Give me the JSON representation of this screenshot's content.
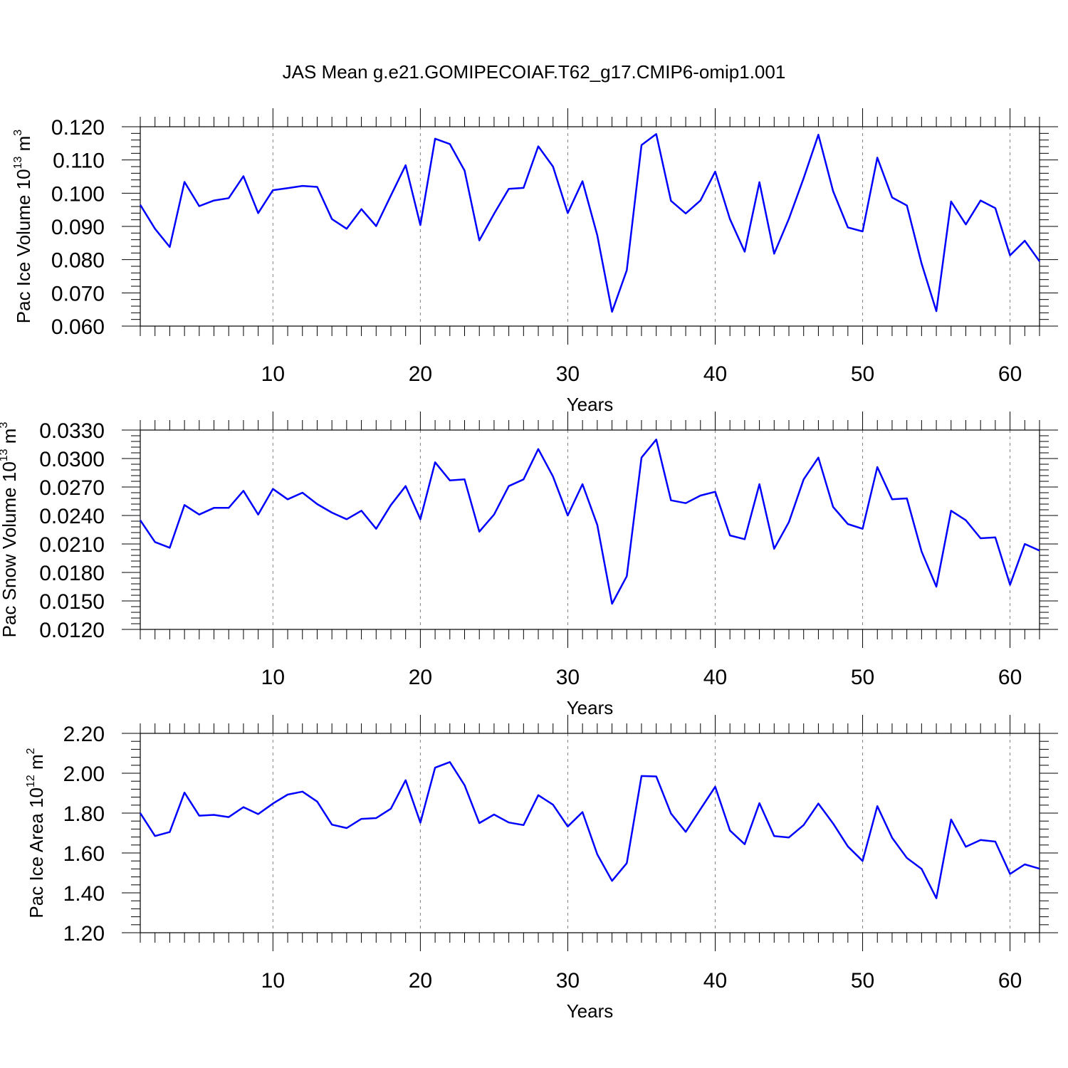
{
  "title": "JAS Mean g.e21.GOMIPECOIAF.T62_g17.CMIP6-omip1.001",
  "colors": {
    "series": "#0000ff",
    "grid": "#808080"
  },
  "chart_data": [
    {
      "type": "line",
      "ylabel_main": "Pac Ice Volume 10",
      "ylabel_exp": "13",
      "ylabel_unit": " m",
      "ylabel_unit_exp": "3",
      "xlabel": "Years",
      "xlim": [
        1,
        62
      ],
      "ylim": [
        0.06,
        0.12
      ],
      "y_ticks": [
        "0.060",
        "0.070",
        "0.080",
        "0.090",
        "0.100",
        "0.110",
        "0.120"
      ],
      "y_tick_values": [
        0.06,
        0.07,
        0.08,
        0.09,
        0.1,
        0.11,
        0.12
      ],
      "x_ticks": [
        "10",
        "20",
        "30",
        "40",
        "50",
        "60"
      ],
      "x_tick_values": [
        10,
        20,
        30,
        40,
        50,
        60
      ],
      "grid": "vertical dashed at major x ticks",
      "x": [
        1,
        2,
        3,
        4,
        5,
        6,
        7,
        8,
        9,
        10,
        11,
        12,
        13,
        14,
        15,
        16,
        17,
        18,
        19,
        20,
        21,
        22,
        23,
        24,
        25,
        26,
        27,
        28,
        29,
        30,
        31,
        32,
        33,
        34,
        35,
        36,
        37,
        38,
        39,
        40,
        41,
        42,
        43,
        44,
        45,
        46,
        47,
        48,
        49,
        50,
        51,
        52,
        53,
        54,
        55,
        56,
        57,
        58,
        59,
        60,
        61,
        62
      ],
      "values": [
        0.0965,
        0.0893,
        0.0838,
        0.1034,
        0.0961,
        0.0978,
        0.0985,
        0.1051,
        0.094,
        0.1009,
        0.1015,
        0.1022,
        0.1019,
        0.0922,
        0.0893,
        0.0952,
        0.0901,
        0.0993,
        0.1084,
        0.0904,
        0.1164,
        0.1148,
        0.1068,
        0.0858,
        0.0938,
        0.1013,
        0.1016,
        0.1141,
        0.108,
        0.094,
        0.1036,
        0.0873,
        0.0643,
        0.0768,
        0.1145,
        0.1178,
        0.0977,
        0.0939,
        0.0978,
        0.1065,
        0.0922,
        0.0824,
        0.1033,
        0.0818,
        0.0923,
        0.1045,
        0.1176,
        0.1006,
        0.0897,
        0.0885,
        0.1107,
        0.0987,
        0.0963,
        0.0788,
        0.0645,
        0.0975,
        0.0906,
        0.0978,
        0.0955,
        0.0813,
        0.0857,
        0.0795
      ]
    },
    {
      "type": "line",
      "ylabel_main": "Pac Snow Volume 10",
      "ylabel_exp": "13",
      "ylabel_unit": " m",
      "ylabel_unit_exp": "3",
      "xlabel": "Years",
      "xlim": [
        1,
        62
      ],
      "ylim": [
        0.012,
        0.033
      ],
      "y_ticks": [
        "0.0120",
        "0.0150",
        "0.0180",
        "0.0210",
        "0.0240",
        "0.0270",
        "0.0300",
        "0.0330"
      ],
      "y_tick_values": [
        0.012,
        0.015,
        0.018,
        0.021,
        0.024,
        0.027,
        0.03,
        0.033
      ],
      "x_ticks": [
        "10",
        "20",
        "30",
        "40",
        "50",
        "60"
      ],
      "x_tick_values": [
        10,
        20,
        30,
        40,
        50,
        60
      ],
      "grid": "vertical dashed at major x ticks",
      "x": [
        1,
        2,
        3,
        4,
        5,
        6,
        7,
        8,
        9,
        10,
        11,
        12,
        13,
        14,
        15,
        16,
        17,
        18,
        19,
        20,
        21,
        22,
        23,
        24,
        25,
        26,
        27,
        28,
        29,
        30,
        31,
        32,
        33,
        34,
        35,
        36,
        37,
        38,
        39,
        40,
        41,
        42,
        43,
        44,
        45,
        46,
        47,
        48,
        49,
        50,
        51,
        52,
        53,
        54,
        55,
        56,
        57,
        58,
        59,
        60,
        61,
        62
      ],
      "values": [
        0.0235,
        0.0212,
        0.0206,
        0.0251,
        0.0241,
        0.0248,
        0.0248,
        0.0266,
        0.0241,
        0.0268,
        0.0257,
        0.0264,
        0.0252,
        0.0243,
        0.0236,
        0.0245,
        0.0226,
        0.0251,
        0.0271,
        0.0236,
        0.0296,
        0.0277,
        0.0278,
        0.0223,
        0.0241,
        0.0271,
        0.0278,
        0.031,
        0.0281,
        0.024,
        0.0273,
        0.023,
        0.0147,
        0.0176,
        0.0301,
        0.032,
        0.0256,
        0.0253,
        0.0261,
        0.0265,
        0.0219,
        0.0215,
        0.0273,
        0.0205,
        0.0233,
        0.0278,
        0.0301,
        0.0249,
        0.0231,
        0.0226,
        0.0291,
        0.0257,
        0.0258,
        0.0202,
        0.0165,
        0.0245,
        0.0235,
        0.0216,
        0.0217,
        0.0167,
        0.021,
        0.0203
      ]
    },
    {
      "type": "line",
      "ylabel_main": "Pac Ice Area 10",
      "ylabel_exp": "12",
      "ylabel_unit": " m",
      "ylabel_unit_exp": "2",
      "xlabel": "Years",
      "xlim": [
        1,
        62
      ],
      "ylim": [
        1.2,
        2.2
      ],
      "y_ticks": [
        "1.20",
        "1.40",
        "1.60",
        "1.80",
        "2.00",
        "2.20"
      ],
      "y_tick_values": [
        1.2,
        1.4,
        1.6,
        1.8,
        2.0,
        2.2
      ],
      "x_ticks": [
        "10",
        "20",
        "30",
        "40",
        "50",
        "60"
      ],
      "x_tick_values": [
        10,
        20,
        30,
        40,
        50,
        60
      ],
      "grid": "vertical dashed at major x ticks",
      "x": [
        1,
        2,
        3,
        4,
        5,
        6,
        7,
        8,
        9,
        10,
        11,
        12,
        13,
        14,
        15,
        16,
        17,
        18,
        19,
        20,
        21,
        22,
        23,
        24,
        25,
        26,
        27,
        28,
        29,
        30,
        31,
        32,
        33,
        34,
        35,
        36,
        37,
        38,
        39,
        40,
        41,
        42,
        43,
        44,
        45,
        46,
        47,
        48,
        49,
        50,
        51,
        52,
        53,
        54,
        55,
        56,
        57,
        58,
        59,
        60,
        61,
        62
      ],
      "values": [
        1.8,
        1.685,
        1.705,
        1.903,
        1.787,
        1.791,
        1.78,
        1.83,
        1.795,
        1.848,
        1.893,
        1.908,
        1.858,
        1.742,
        1.725,
        1.771,
        1.775,
        1.822,
        1.965,
        1.752,
        2.028,
        2.056,
        1.94,
        1.75,
        1.793,
        1.753,
        1.74,
        1.89,
        1.842,
        1.733,
        1.805,
        1.593,
        1.46,
        1.549,
        1.986,
        1.984,
        1.798,
        1.706,
        1.82,
        1.932,
        1.713,
        1.644,
        1.85,
        1.685,
        1.678,
        1.74,
        1.848,
        1.748,
        1.633,
        1.56,
        1.835,
        1.676,
        1.575,
        1.52,
        1.373,
        1.768,
        1.631,
        1.665,
        1.657,
        1.495,
        1.543,
        1.521
      ]
    }
  ]
}
